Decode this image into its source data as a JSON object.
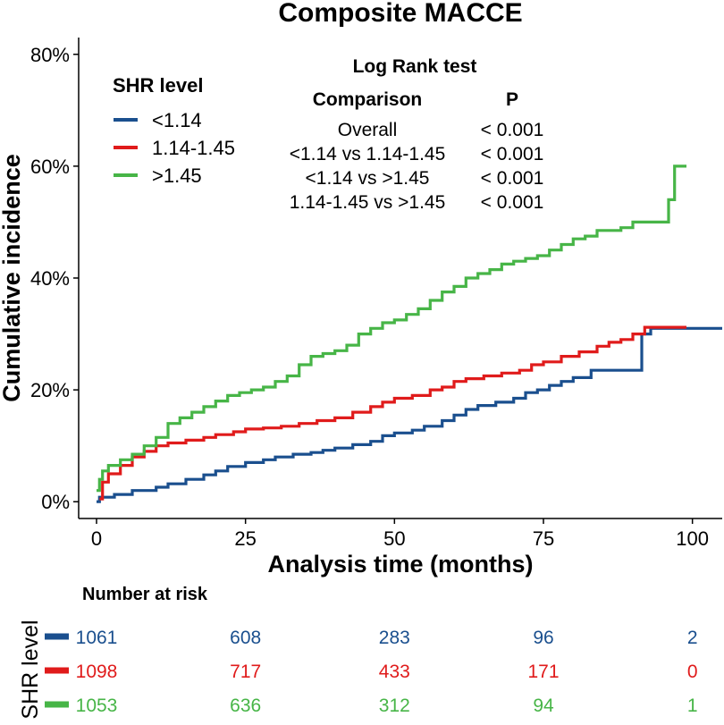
{
  "chart_data": {
    "type": "line",
    "title": "Composite MACCE",
    "xlabel": "Analysis time (months)",
    "ylabel": "Cumulative incidence",
    "xlim": [
      -3,
      105
    ],
    "ylim": [
      -0.03,
      0.83
    ],
    "x_ticks": [
      0,
      25,
      50,
      75,
      100
    ],
    "x_tick_labels": [
      "0",
      "25",
      "50",
      "75",
      "100"
    ],
    "y_ticks": [
      0,
      0.2,
      0.4,
      0.6,
      0.8
    ],
    "y_tick_labels": [
      "0%",
      "20%",
      "40%",
      "60%",
      "80%"
    ],
    "legend_title": "SHR level",
    "series": [
      {
        "name": "<1.14",
        "color": "#1a4f8e",
        "points": [
          [
            0,
            0
          ],
          [
            0.5,
            0.008
          ],
          [
            3,
            0.013
          ],
          [
            6,
            0.02
          ],
          [
            10,
            0.026
          ],
          [
            12,
            0.032
          ],
          [
            15,
            0.04
          ],
          [
            18,
            0.048
          ],
          [
            20,
            0.055
          ],
          [
            22,
            0.063
          ],
          [
            25,
            0.07
          ],
          [
            28,
            0.075
          ],
          [
            30,
            0.08
          ],
          [
            33,
            0.085
          ],
          [
            36,
            0.088
          ],
          [
            38,
            0.092
          ],
          [
            40,
            0.096
          ],
          [
            43,
            0.102
          ],
          [
            46,
            0.108
          ],
          [
            48,
            0.118
          ],
          [
            50,
            0.123
          ],
          [
            53,
            0.128
          ],
          [
            55,
            0.135
          ],
          [
            58,
            0.145
          ],
          [
            60,
            0.155
          ],
          [
            62,
            0.165
          ],
          [
            64,
            0.172
          ],
          [
            67,
            0.178
          ],
          [
            70,
            0.185
          ],
          [
            72,
            0.195
          ],
          [
            74,
            0.2
          ],
          [
            76,
            0.208
          ],
          [
            78,
            0.215
          ],
          [
            80,
            0.222
          ],
          [
            83,
            0.235
          ],
          [
            85,
            0.235
          ],
          [
            88,
            0.235
          ],
          [
            91,
            0.235
          ],
          [
            91.5,
            0.3
          ],
          [
            92.5,
            0.3
          ],
          [
            93,
            0.31
          ],
          [
            105,
            0.31
          ]
        ]
      },
      {
        "name": "1.14-1.45",
        "color": "#e01b1b",
        "points": [
          [
            0.5,
            0.005
          ],
          [
            1,
            0.035
          ],
          [
            2,
            0.05
          ],
          [
            4,
            0.065
          ],
          [
            6,
            0.08
          ],
          [
            8,
            0.09
          ],
          [
            10,
            0.1
          ],
          [
            12,
            0.105
          ],
          [
            15,
            0.11
          ],
          [
            18,
            0.115
          ],
          [
            20,
            0.12
          ],
          [
            23,
            0.125
          ],
          [
            25,
            0.13
          ],
          [
            28,
            0.132
          ],
          [
            31,
            0.135
          ],
          [
            34,
            0.14
          ],
          [
            37,
            0.145
          ],
          [
            40,
            0.15
          ],
          [
            43,
            0.16
          ],
          [
            46,
            0.17
          ],
          [
            48,
            0.178
          ],
          [
            50,
            0.185
          ],
          [
            53,
            0.19
          ],
          [
            56,
            0.2
          ],
          [
            58,
            0.205
          ],
          [
            60,
            0.215
          ],
          [
            62,
            0.22
          ],
          [
            65,
            0.225
          ],
          [
            68,
            0.23
          ],
          [
            71,
            0.235
          ],
          [
            73,
            0.245
          ],
          [
            75,
            0.25
          ],
          [
            78,
            0.26
          ],
          [
            81,
            0.268
          ],
          [
            84,
            0.278
          ],
          [
            86,
            0.285
          ],
          [
            88,
            0.29
          ],
          [
            90,
            0.3
          ],
          [
            92,
            0.312
          ],
          [
            99,
            0.312
          ]
        ]
      },
      {
        "name": ">1.45",
        "color": "#47b547",
        "points": [
          [
            0,
            0.02
          ],
          [
            0.5,
            0.04
          ],
          [
            1,
            0.055
          ],
          [
            2,
            0.065
          ],
          [
            4,
            0.075
          ],
          [
            6,
            0.085
          ],
          [
            8,
            0.1
          ],
          [
            10,
            0.115
          ],
          [
            12,
            0.14
          ],
          [
            14,
            0.15
          ],
          [
            16,
            0.16
          ],
          [
            18,
            0.17
          ],
          [
            20,
            0.18
          ],
          [
            22,
            0.19
          ],
          [
            24,
            0.195
          ],
          [
            26,
            0.2
          ],
          [
            28,
            0.205
          ],
          [
            30,
            0.215
          ],
          [
            32,
            0.225
          ],
          [
            34,
            0.245
          ],
          [
            36,
            0.26
          ],
          [
            38,
            0.265
          ],
          [
            40,
            0.27
          ],
          [
            42,
            0.28
          ],
          [
            44,
            0.3
          ],
          [
            46,
            0.31
          ],
          [
            48,
            0.32
          ],
          [
            50,
            0.325
          ],
          [
            52,
            0.335
          ],
          [
            54,
            0.345
          ],
          [
            56,
            0.36
          ],
          [
            58,
            0.375
          ],
          [
            60,
            0.385
          ],
          [
            62,
            0.4
          ],
          [
            64,
            0.408
          ],
          [
            66,
            0.415
          ],
          [
            68,
            0.425
          ],
          [
            70,
            0.43
          ],
          [
            72,
            0.435
          ],
          [
            74,
            0.44
          ],
          [
            76,
            0.45
          ],
          [
            78,
            0.46
          ],
          [
            80,
            0.47
          ],
          [
            82,
            0.475
          ],
          [
            84,
            0.485
          ],
          [
            88,
            0.49
          ],
          [
            90,
            0.5
          ],
          [
            95,
            0.5
          ],
          [
            96,
            0.54
          ],
          [
            97,
            0.6
          ],
          [
            99,
            0.6
          ]
        ]
      }
    ],
    "annotation_table": {
      "title": "Log Rank test",
      "headers": [
        "Comparison",
        "P"
      ],
      "rows": [
        [
          "Overall",
          "< 0.001"
        ],
        [
          "<1.14 vs 1.14-1.45",
          "< 0.001"
        ],
        [
          "<1.14 vs >1.45",
          "< 0.001"
        ],
        [
          "1.14-1.45 vs >1.45",
          "< 0.001"
        ]
      ]
    },
    "risk_table": {
      "title": "Number at risk",
      "ylabel": "SHR level",
      "rows": [
        {
          "name": "<1.14",
          "color": "#1a4f8e",
          "values": [
            "1061",
            "608",
            "283",
            "96",
            "2"
          ]
        },
        {
          "name": "1.14-1.45",
          "color": "#e01b1b",
          "values": [
            "1098",
            "717",
            "433",
            "171",
            "0"
          ]
        },
        {
          "name": ">1.45",
          "color": "#47b547",
          "values": [
            "1053",
            "636",
            "312",
            "94",
            "1"
          ]
        }
      ]
    }
  }
}
